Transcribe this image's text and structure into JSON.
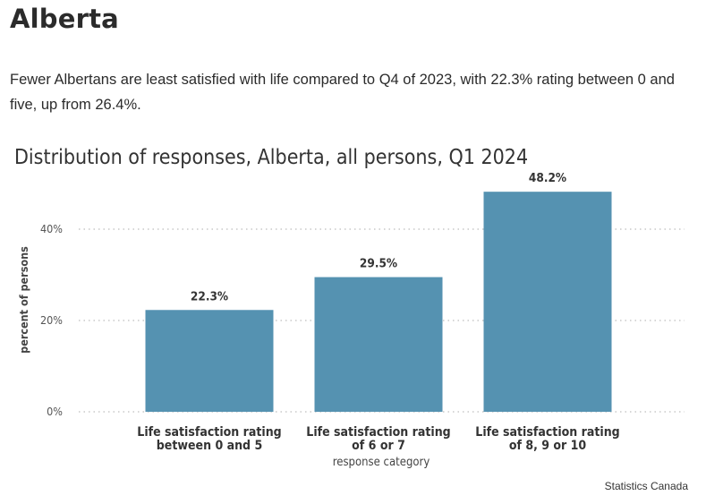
{
  "page": {
    "title": "Alberta",
    "summary": "Fewer Albertans are least satisfied with life compared to Q4 of 2023, with 22.3% rating between 0 and five, up from 26.4%."
  },
  "colors": {
    "bar": "#5592b1"
  },
  "chart_data": {
    "type": "bar",
    "title": "Distribution of responses, Alberta, all persons, Q1 2024",
    "categories": [
      [
        "Life satisfaction rating",
        "between 0 and 5"
      ],
      [
        "Life satisfaction rating",
        "of 6 or 7"
      ],
      [
        "Life satisfaction rating",
        "of 8, 9 or 10"
      ]
    ],
    "values": [
      22.3,
      29.5,
      48.2
    ],
    "data_labels": [
      "22.3%",
      "29.5%",
      "48.2%"
    ],
    "xlabel": "response category",
    "ylabel": "percent of persons",
    "yticks": [
      0,
      20,
      40
    ],
    "ytick_labels": [
      "0%",
      "20%",
      "40%"
    ],
    "ylim": [
      0,
      50
    ],
    "grid": true,
    "source": "Statistics Canada"
  }
}
